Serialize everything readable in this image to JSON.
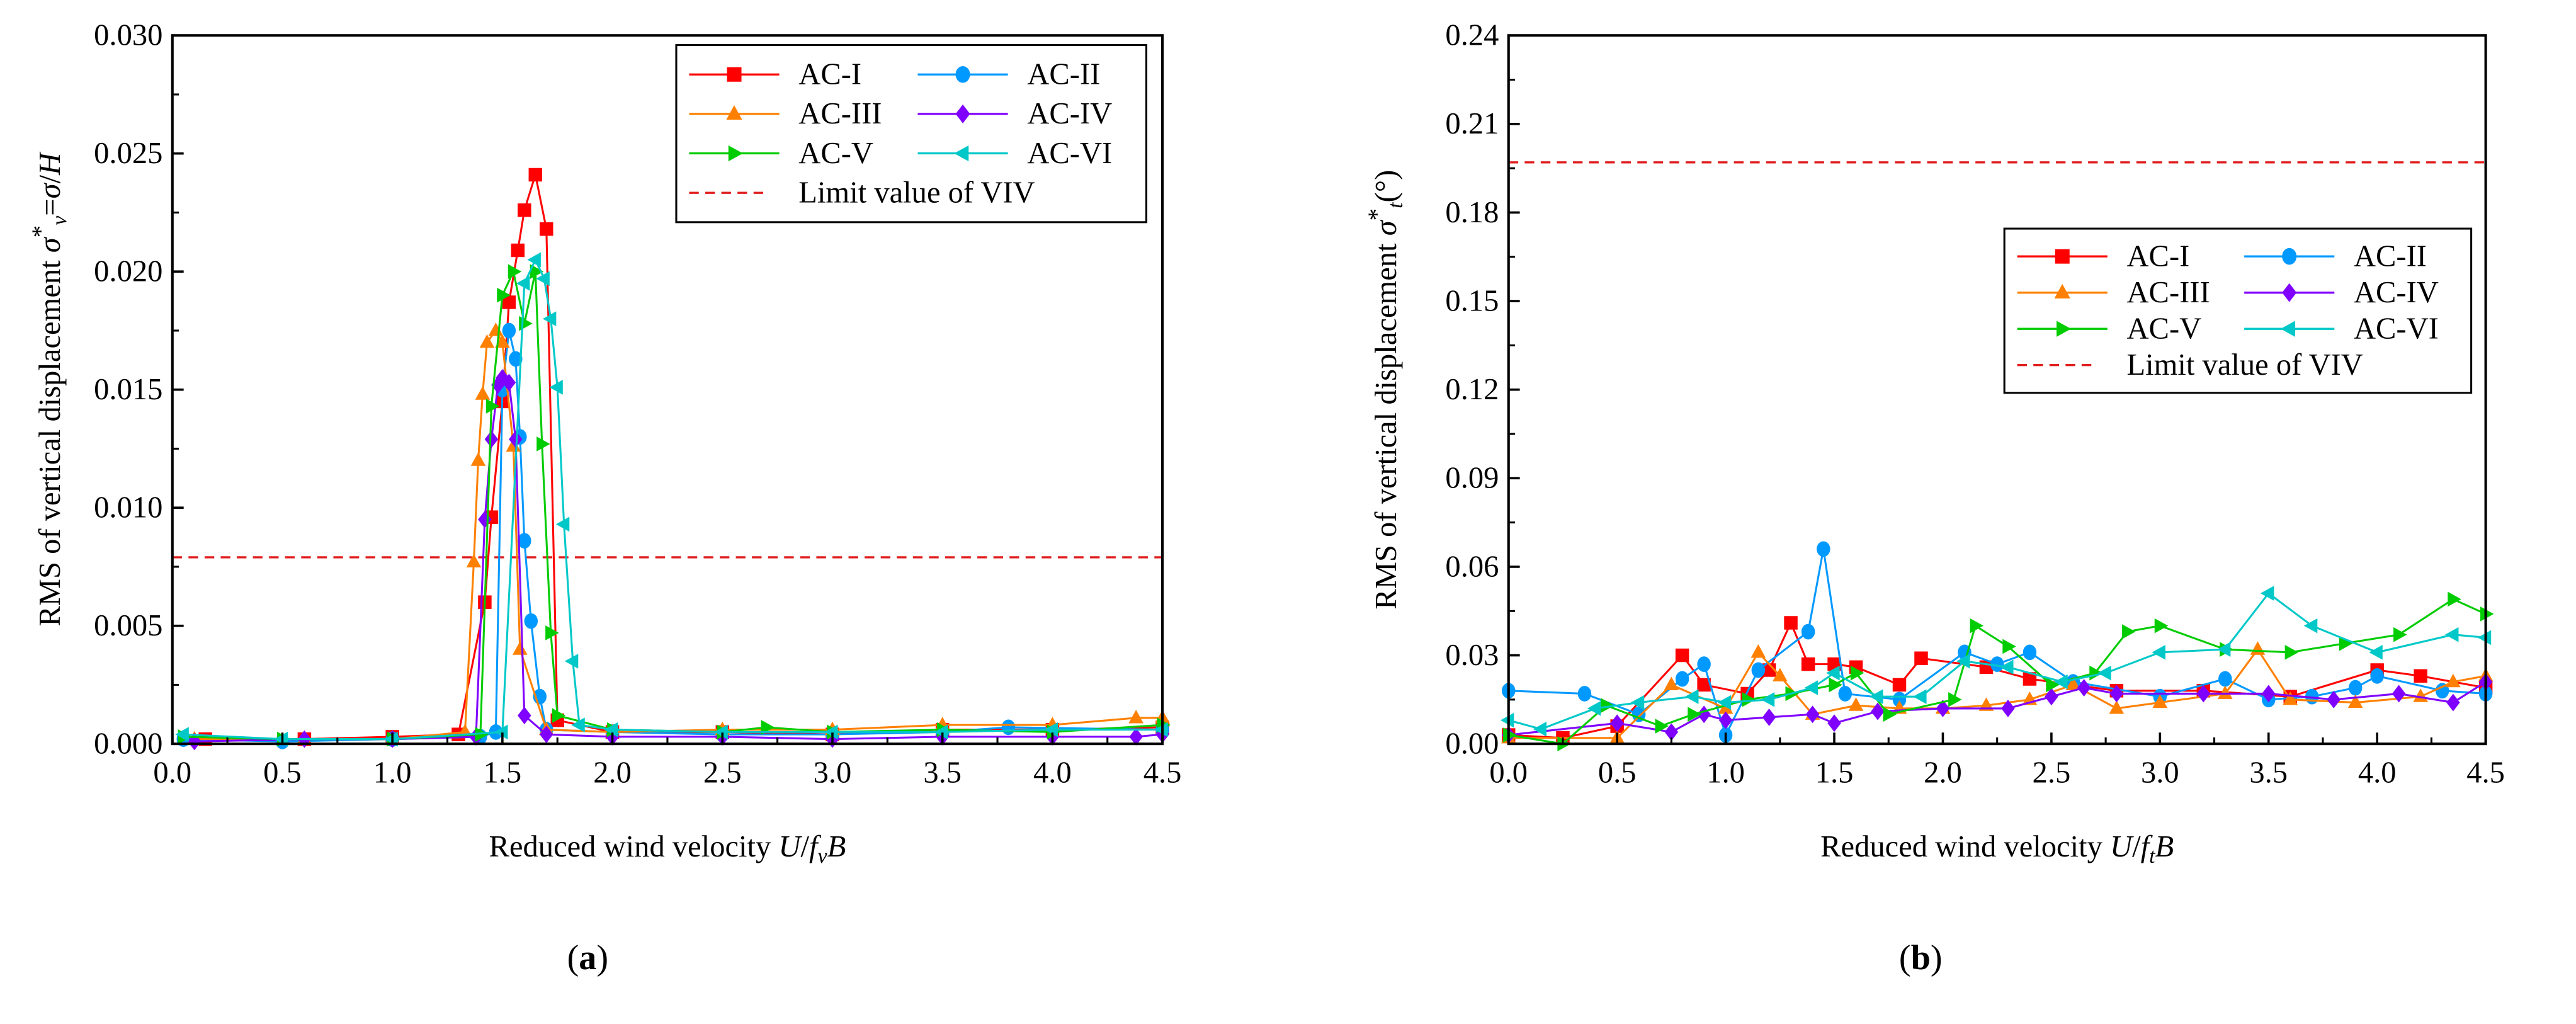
{
  "colors": {
    "AC-I": "#ff0000",
    "AC-II": "#0099ff",
    "AC-III": "#ff8000",
    "AC-IV": "#8000ff",
    "AC-V": "#00cc00",
    "AC-VI": "#00c8c8",
    "limit": "#e02020"
  },
  "chart_data": [
    {
      "type": "line",
      "panel_label": {
        "open": "(",
        "letter": "a",
        "close": ")"
      },
      "xlabel_parts": [
        {
          "t": "Reduced wind velocity "
        },
        {
          "t": "U",
          "i": 1
        },
        {
          "t": "/"
        },
        {
          "t": "f",
          "i": 1
        },
        {
          "t": "v",
          "i": 1,
          "sub": 1
        },
        {
          "t": "B",
          "i": 1
        }
      ],
      "ylabel_parts": [
        {
          "t": "RMS of vertical displacement "
        },
        {
          "t": "σ",
          "i": 1
        },
        {
          "t": "*",
          "sup": 1
        },
        {
          "t": "v",
          "i": 1,
          "sub": 1
        },
        {
          "t": "="
        },
        {
          "t": "σ",
          "i": 1
        },
        {
          "t": "/"
        },
        {
          "t": "H",
          "i": 1
        }
      ],
      "xlim": [
        0,
        4.5
      ],
      "ylim": [
        0,
        0.03
      ],
      "xticks": [
        "0.0",
        "0.5",
        "1.0",
        "1.5",
        "2.0",
        "2.5",
        "3.0",
        "3.5",
        "4.0",
        "4.5"
      ],
      "yticks": [
        "0.000",
        "0.005",
        "0.010",
        "0.015",
        "0.020",
        "0.025",
        "0.030"
      ],
      "legend_position": "top-right",
      "limit": {
        "label": "Limit value of VIV",
        "value": 0.0079
      },
      "series": [
        {
          "name": "AC-I",
          "marker": "square",
          "x": [
            0.15,
            0.6,
            1.0,
            1.3,
            1.42,
            1.45,
            1.5,
            1.53,
            1.57,
            1.6,
            1.65,
            1.7,
            1.75,
            2.0,
            2.5,
            3.0,
            3.5,
            4.0,
            4.5
          ],
          "y": [
            0.0002,
            0.0002,
            0.0003,
            0.0004,
            0.006,
            0.0096,
            0.0145,
            0.0187,
            0.0209,
            0.0226,
            0.0241,
            0.0218,
            0.001,
            0.0005,
            0.0005,
            0.0004,
            0.0006,
            0.0006,
            0.0007
          ]
        },
        {
          "name": "AC-II",
          "marker": "circle",
          "x": [
            0.05,
            0.5,
            1.0,
            1.4,
            1.47,
            1.5,
            1.53,
            1.56,
            1.58,
            1.6,
            1.63,
            1.67,
            1.7,
            2.0,
            2.5,
            3.0,
            3.5,
            3.8,
            4.5
          ],
          "y": [
            0.0002,
            0.0001,
            0.0002,
            0.0003,
            0.0005,
            0.015,
            0.0175,
            0.0163,
            0.013,
            0.0086,
            0.0052,
            0.002,
            0.0006,
            0.0005,
            0.0004,
            0.0004,
            0.0005,
            0.0007,
            0.0006
          ]
        },
        {
          "name": "AC-III",
          "marker": "triangle-up",
          "x": [
            0.1,
            0.6,
            1.0,
            1.33,
            1.37,
            1.39,
            1.41,
            1.43,
            1.47,
            1.5,
            1.55,
            1.58,
            1.7,
            2.0,
            2.5,
            3.0,
            3.5,
            4.0,
            4.38,
            4.5
          ],
          "y": [
            0.0002,
            0.0002,
            0.0002,
            0.0005,
            0.0077,
            0.012,
            0.0148,
            0.017,
            0.0175,
            0.017,
            0.0126,
            0.004,
            0.0006,
            0.0005,
            0.0006,
            0.0006,
            0.0008,
            0.0008,
            0.0011,
            0.0011
          ]
        },
        {
          "name": "AC-IV",
          "marker": "diamond",
          "x": [
            0.1,
            0.6,
            1.0,
            1.38,
            1.42,
            1.45,
            1.48,
            1.5,
            1.53,
            1.56,
            1.6,
            1.7,
            2.0,
            2.5,
            3.0,
            3.5,
            4.0,
            4.38,
            4.5
          ],
          "y": [
            0.0001,
            0.0002,
            0.0002,
            0.0003,
            0.0095,
            0.0129,
            0.0152,
            0.0155,
            0.0153,
            0.0129,
            0.0012,
            0.0004,
            0.0003,
            0.0003,
            0.0002,
            0.0003,
            0.0003,
            0.0003,
            0.0004
          ]
        },
        {
          "name": "AC-V",
          "marker": "triangle-right",
          "x": [
            0.05,
            0.5,
            1.0,
            1.4,
            1.45,
            1.5,
            1.55,
            1.6,
            1.65,
            1.68,
            1.72,
            1.75,
            2.0,
            2.5,
            2.7,
            3.0,
            3.5,
            4.0,
            4.5
          ],
          "y": [
            0.0003,
            0.0002,
            0.0002,
            0.0004,
            0.0143,
            0.019,
            0.02,
            0.0178,
            0.02,
            0.0127,
            0.0047,
            0.0012,
            0.0006,
            0.0005,
            0.0007,
            0.0005,
            0.0006,
            0.0005,
            0.0008
          ]
        },
        {
          "name": "AC-VI",
          "marker": "triangle-left",
          "x": [
            0.05,
            0.5,
            1.0,
            1.5,
            1.6,
            1.65,
            1.69,
            1.72,
            1.75,
            1.78,
            1.82,
            1.85,
            2.0,
            2.5,
            3.0,
            3.5,
            4.0,
            4.5
          ],
          "y": [
            0.0004,
            0.0002,
            0.0002,
            0.0005,
            0.0195,
            0.0205,
            0.0197,
            0.018,
            0.0151,
            0.0093,
            0.0035,
            0.0008,
            0.0006,
            0.0005,
            0.0005,
            0.0005,
            0.0006,
            0.0006
          ]
        }
      ]
    },
    {
      "type": "line",
      "panel_label": {
        "open": "(",
        "letter": "b",
        "close": ")"
      },
      "xlabel_parts": [
        {
          "t": "Reduced wind velocity "
        },
        {
          "t": "U",
          "i": 1
        },
        {
          "t": "/"
        },
        {
          "t": "f",
          "i": 1
        },
        {
          "t": "t",
          "i": 1,
          "sub": 1
        },
        {
          "t": "B",
          "i": 1
        }
      ],
      "ylabel_parts": [
        {
          "t": "RMS of vertical displacement "
        },
        {
          "t": "σ",
          "i": 1
        },
        {
          "t": "*",
          "sup": 1
        },
        {
          "t": "t",
          "i": 1,
          "sub": 1
        },
        {
          "t": "(°)"
        }
      ],
      "xlim": [
        0,
        4.5
      ],
      "ylim": [
        0,
        0.24
      ],
      "xticks": [
        "0.0",
        "0.5",
        "1.0",
        "1.5",
        "2.0",
        "2.5",
        "3.0",
        "3.5",
        "4.0",
        "4.5"
      ],
      "yticks": [
        "0.00",
        "0.03",
        "0.06",
        "0.09",
        "0.12",
        "0.15",
        "0.18",
        "0.21",
        "0.24"
      ],
      "legend_position": "upper-right",
      "limit": {
        "label": "Limit value of VIV",
        "value": 0.197
      },
      "series": [
        {
          "name": "AC-I",
          "marker": "square",
          "x": [
            0,
            0.25,
            0.5,
            0.8,
            0.9,
            1.1,
            1.2,
            1.3,
            1.38,
            1.5,
            1.6,
            1.8,
            1.9,
            2.2,
            2.4,
            2.8,
            3.2,
            3.6,
            4.0,
            4.2,
            4.5
          ],
          "y": [
            0.003,
            0.002,
            0.006,
            0.03,
            0.02,
            0.017,
            0.025,
            0.041,
            0.027,
            0.027,
            0.026,
            0.02,
            0.029,
            0.026,
            0.022,
            0.018,
            0.018,
            0.016,
            0.025,
            0.023,
            0.019
          ]
        },
        {
          "name": "AC-II",
          "marker": "circle",
          "x": [
            0,
            0.35,
            0.6,
            0.8,
            0.9,
            1.0,
            1.15,
            1.38,
            1.45,
            1.55,
            1.8,
            2.1,
            2.25,
            2.4,
            2.6,
            3.0,
            3.3,
            3.5,
            3.7,
            3.9,
            4.0,
            4.3,
            4.5
          ],
          "y": [
            0.018,
            0.017,
            0.01,
            0.022,
            0.027,
            0.003,
            0.025,
            0.038,
            0.066,
            0.017,
            0.015,
            0.031,
            0.027,
            0.031,
            0.021,
            0.016,
            0.022,
            0.015,
            0.016,
            0.019,
            0.023,
            0.018,
            0.017
          ]
        },
        {
          "name": "AC-III",
          "marker": "triangle-up",
          "x": [
            0,
            0.5,
            0.75,
            1.0,
            1.15,
            1.25,
            1.4,
            1.6,
            1.8,
            2.0,
            2.2,
            2.4,
            2.6,
            2.8,
            3.0,
            3.3,
            3.45,
            3.6,
            3.9,
            4.2,
            4.35,
            4.5
          ],
          "y": [
            0.002,
            0.002,
            0.02,
            0.012,
            0.031,
            0.023,
            0.01,
            0.013,
            0.012,
            0.012,
            0.013,
            0.015,
            0.02,
            0.012,
            0.014,
            0.017,
            0.032,
            0.015,
            0.014,
            0.016,
            0.021,
            0.023
          ]
        },
        {
          "name": "AC-IV",
          "marker": "diamond",
          "x": [
            0,
            0.5,
            0.75,
            0.9,
            1.0,
            1.2,
            1.4,
            1.5,
            1.7,
            2.0,
            2.3,
            2.5,
            2.65,
            2.8,
            3.2,
            3.5,
            3.8,
            4.1,
            4.35,
            4.5
          ],
          "y": [
            0.003,
            0.007,
            0.004,
            0.01,
            0.008,
            0.009,
            0.01,
            0.007,
            0.011,
            0.012,
            0.012,
            0.016,
            0.019,
            0.017,
            0.017,
            0.017,
            0.015,
            0.017,
            0.014,
            0.021
          ]
        },
        {
          "name": "AC-V",
          "marker": "triangle-right",
          "x": [
            0,
            0.25,
            0.45,
            0.7,
            0.85,
            1.1,
            1.3,
            1.5,
            1.6,
            1.75,
            2.05,
            2.15,
            2.3,
            2.5,
            2.7,
            2.85,
            3.0,
            3.3,
            3.6,
            3.85,
            4.1,
            4.35,
            4.5
          ],
          "y": [
            0.003,
            0.0,
            0.013,
            0.006,
            0.01,
            0.015,
            0.017,
            0.02,
            0.024,
            0.01,
            0.015,
            0.04,
            0.033,
            0.02,
            0.024,
            0.038,
            0.04,
            0.032,
            0.031,
            0.034,
            0.037,
            0.049,
            0.044
          ]
        },
        {
          "name": "AC-VI",
          "marker": "triangle-left",
          "x": [
            0,
            0.15,
            0.4,
            0.6,
            0.85,
            1.0,
            1.2,
            1.4,
            1.5,
            1.7,
            1.9,
            2.1,
            2.3,
            2.55,
            2.75,
            3.0,
            3.3,
            3.5,
            3.7,
            4.0,
            4.35,
            4.5
          ],
          "y": [
            0.008,
            0.005,
            0.012,
            0.014,
            0.016,
            0.014,
            0.015,
            0.019,
            0.024,
            0.016,
            0.016,
            0.028,
            0.026,
            0.021,
            0.024,
            0.031,
            0.032,
            0.051,
            0.04,
            0.031,
            0.037,
            0.036
          ]
        }
      ]
    }
  ]
}
